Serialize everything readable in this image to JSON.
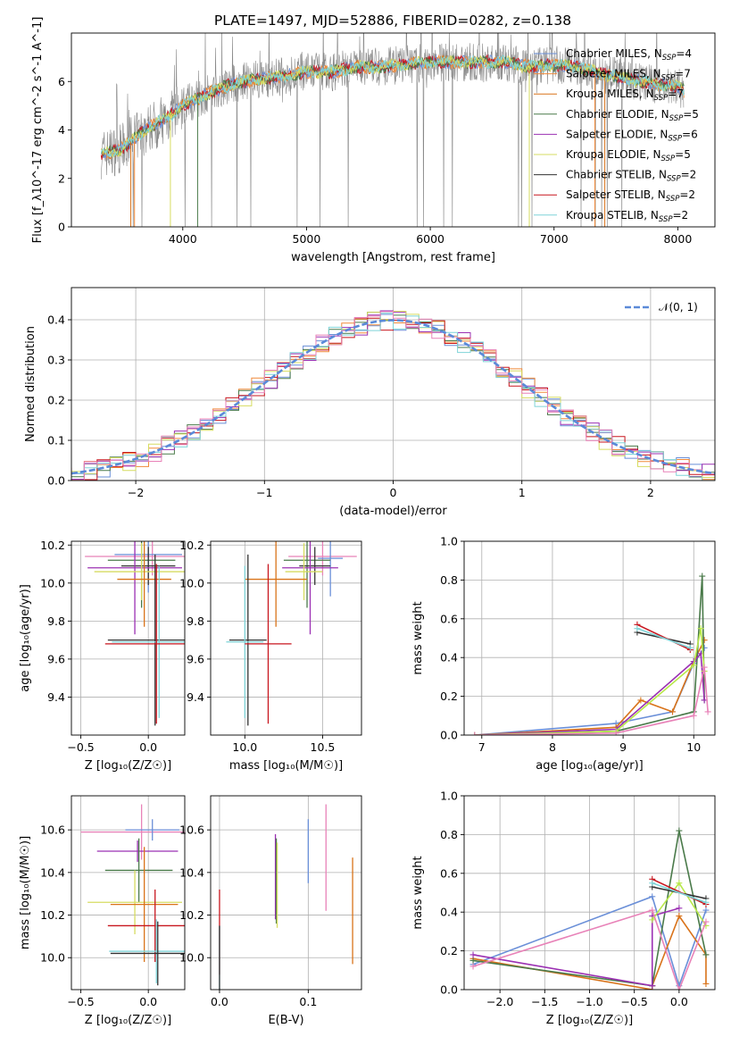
{
  "figure": {
    "title": "PLATE=1497, MJD=52886, FIBERID=0282, z=0.138"
  },
  "colors": {
    "Chabrier MILES": "#6a8fd8",
    "Salpeter MILES": "#f08a3a",
    "Kroupa MILES": "#d9731a",
    "Chabrier ELODIE": "#4a7a4a",
    "Salpeter ELODIE": "#9b30b3",
    "Kroupa ELODIE": "#d6dc60",
    "Chabrier STELIB": "#333333",
    "Salpeter STELIB": "#c8161f",
    "Kroupa STELIB": "#7fd4d8",
    "pink": "#e882b8",
    "lime": "#b8e84a",
    "gray": "#888888",
    "normal": "#5b8ad8"
  },
  "chart_data": [
    {
      "id": "spectrum",
      "type": "line",
      "xlabel": "wavelength [Angstrom, rest frame]",
      "ylabel": "Flux [f_λ10^-17 erg cm^-2 s^-1 A^-1]",
      "xlim": [
        3100,
        8300
      ],
      "ylim": [
        0,
        8
      ],
      "xticks": [
        4000,
        5000,
        6000,
        7000,
        8000
      ],
      "yticks": [
        0,
        2,
        4,
        6
      ],
      "grid": false,
      "legend_position": "right",
      "legend": [
        {
          "label": "Chabrier MILES, N",
          "sub": "SSP",
          "tail": "=4",
          "color_key": "Chabrier MILES"
        },
        {
          "label": "Salpeter MILES, N",
          "sub": "SSP",
          "tail": "=7",
          "color_key": "Salpeter MILES"
        },
        {
          "label": "Kroupa MILES, N",
          "sub": "SSP",
          "tail": "=7",
          "color_key": "Kroupa MILES"
        },
        {
          "label": "Chabrier ELODIE, N",
          "sub": "SSP",
          "tail": "=5",
          "color_key": "Chabrier ELODIE"
        },
        {
          "label": "Salpeter ELODIE, N",
          "sub": "SSP",
          "tail": "=6",
          "color_key": "Salpeter ELODIE"
        },
        {
          "label": "Kroupa ELODIE, N",
          "sub": "SSP",
          "tail": "=5",
          "color_key": "Kroupa ELODIE"
        },
        {
          "label": "Chabrier STELIB, N",
          "sub": "SSP",
          "tail": "=2",
          "color_key": "Chabrier STELIB"
        },
        {
          "label": "Salpeter STELIB, N",
          "sub": "SSP",
          "tail": "=2",
          "color_key": "Salpeter STELIB"
        },
        {
          "label": "Kroupa STELIB, N",
          "sub": "SSP",
          "tail": "=2",
          "color_key": "Kroupa STELIB"
        }
      ],
      "continuum": {
        "x": [
          3340,
          3500,
          3600,
          3700,
          3800,
          3900,
          4000,
          4200,
          4400,
          4600,
          4800,
          5000,
          5200,
          5400,
          5600,
          5800,
          6000,
          6200,
          6400,
          6600,
          6800,
          7000,
          7200,
          7400,
          7600,
          7800,
          8000,
          8050
        ],
        "y": [
          3.0,
          3.2,
          3.6,
          4.0,
          4.3,
          4.6,
          5.0,
          5.5,
          5.9,
          6.1,
          6.2,
          6.4,
          6.4,
          6.6,
          6.6,
          6.7,
          6.8,
          6.8,
          6.8,
          6.8,
          6.6,
          6.7,
          6.6,
          6.3,
          6.1,
          5.9,
          5.8,
          5.6
        ]
      }
    },
    {
      "id": "residuals",
      "type": "line",
      "xlabel": "(data-model)/error",
      "ylabel": "Normed distribution",
      "xlim": [
        -2.5,
        2.5
      ],
      "ylim": [
        0,
        0.48
      ],
      "xticks": [
        -2,
        -1,
        0,
        1,
        2
      ],
      "yticks": [
        0.0,
        0.1,
        0.2,
        0.3,
        0.4
      ],
      "grid": true,
      "legend_position": "top-right",
      "legend": [
        {
          "label": "𝒩(0, 1)",
          "color_key": "normal",
          "dashed": true
        }
      ]
    },
    {
      "id": "age-vs-Z",
      "type": "scatter",
      "xlabel": "Z [log₁₀(Z/Z☉)]",
      "ylabel": "age  [log₁₀(age/yr)]",
      "xlim": [
        -0.57,
        0.27
      ],
      "ylim": [
        9.2,
        10.22
      ],
      "xticks": [
        -0.5,
        0.0
      ],
      "yticks": [
        9.4,
        9.6,
        9.8,
        10.0,
        10.2
      ],
      "grid": true,
      "errorbars": [
        {
          "x": 0.03,
          "y": 10.14,
          "xerr": 0.5,
          "yerr": 0.1,
          "color_key": "pink"
        },
        {
          "x": 0.0,
          "y": 10.15,
          "xerr": 0.25,
          "yerr": 0.2,
          "color_key": "Chabrier MILES"
        },
        {
          "x": -0.05,
          "y": 10.12,
          "xerr": 0.25,
          "yerr": 0.25,
          "color_key": "Chabrier ELODIE"
        },
        {
          "x": 0.0,
          "y": 10.09,
          "xerr": 0.2,
          "yerr": 0.1,
          "color_key": "Chabrier STELIB"
        },
        {
          "x": -0.1,
          "y": 10.08,
          "xerr": 0.35,
          "yerr": 0.35,
          "color_key": "Salpeter ELODIE"
        },
        {
          "x": -0.05,
          "y": 10.06,
          "xerr": 0.35,
          "yerr": 0.15,
          "color_key": "Kroupa ELODIE"
        },
        {
          "x": -0.03,
          "y": 10.02,
          "xerr": 0.2,
          "yerr": 0.25,
          "color_key": "Kroupa MILES"
        },
        {
          "x": 0.05,
          "y": 9.7,
          "xerr": 0.35,
          "yerr": 0.45,
          "color_key": "Chabrier STELIB"
        },
        {
          "x": 0.08,
          "y": 9.69,
          "xerr": 0.35,
          "yerr": 0.4,
          "color_key": "Kroupa STELIB"
        },
        {
          "x": 0.06,
          "y": 9.68,
          "xerr": 0.38,
          "yerr": 0.42,
          "color_key": "Salpeter STELIB"
        }
      ]
    },
    {
      "id": "age-vs-mass",
      "type": "scatter",
      "xlabel": "mass [log₁₀(M/M☉)]",
      "ylabel": "",
      "xlim": [
        9.78,
        10.75
      ],
      "ylim": [
        9.2,
        10.22
      ],
      "xticks": [
        10.0,
        10.5
      ],
      "yticks": [
        9.4,
        9.6,
        9.8,
        10.0,
        10.2
      ],
      "grid": true,
      "errorbars": [
        {
          "x": 10.5,
          "y": 10.14,
          "xerr": 0.22,
          "yerr": 0.1,
          "color_key": "pink"
        },
        {
          "x": 10.55,
          "y": 10.13,
          "xerr": 0.08,
          "yerr": 0.2,
          "color_key": "Chabrier MILES"
        },
        {
          "x": 10.4,
          "y": 10.12,
          "xerr": 0.15,
          "yerr": 0.25,
          "color_key": "Chabrier ELODIE"
        },
        {
          "x": 10.45,
          "y": 10.09,
          "xerr": 0.1,
          "yerr": 0.1,
          "color_key": "Chabrier STELIB"
        },
        {
          "x": 10.42,
          "y": 10.08,
          "xerr": 0.18,
          "yerr": 0.35,
          "color_key": "Salpeter ELODIE"
        },
        {
          "x": 10.38,
          "y": 10.06,
          "xerr": 0.12,
          "yerr": 0.15,
          "color_key": "Kroupa ELODIE"
        },
        {
          "x": 10.2,
          "y": 10.02,
          "xerr": 0.2,
          "yerr": 0.25,
          "color_key": "Kroupa MILES"
        },
        {
          "x": 10.02,
          "y": 9.7,
          "xerr": 0.12,
          "yerr": 0.45,
          "color_key": "Chabrier STELIB"
        },
        {
          "x": 10.0,
          "y": 9.69,
          "xerr": 0.12,
          "yerr": 0.4,
          "color_key": "Kroupa STELIB"
        },
        {
          "x": 10.15,
          "y": 9.68,
          "xerr": 0.15,
          "yerr": 0.42,
          "color_key": "Salpeter STELIB"
        }
      ]
    },
    {
      "id": "massweight-vs-age",
      "type": "line",
      "xlabel": "age  [log₁₀(age/yr)]",
      "ylabel": "mass weight",
      "xlim": [
        6.75,
        10.3
      ],
      "ylim": [
        0,
        1
      ],
      "xticks": [
        7,
        8,
        9,
        10
      ],
      "yticks": [
        0.0,
        0.2,
        0.4,
        0.6,
        0.8,
        1.0
      ],
      "grid": true,
      "series": [
        {
          "color_key": "Chabrier MILES",
          "x": [
            6.9,
            8.9,
            9.7,
            10.0,
            10.15
          ],
          "y": [
            0.0,
            0.06,
            0.12,
            0.37,
            0.45
          ]
        },
        {
          "color_key": "Kroupa MILES",
          "x": [
            6.9,
            8.9,
            9.25,
            9.7,
            10.0,
            10.15
          ],
          "y": [
            0.0,
            0.04,
            0.18,
            0.12,
            0.38,
            0.49
          ]
        },
        {
          "color_key": "Chabrier ELODIE",
          "x": [
            6.9,
            8.9,
            10.0,
            10.12,
            10.15
          ],
          "y": [
            0.0,
            0.02,
            0.12,
            0.82,
            0.18
          ]
        },
        {
          "color_key": "Salpeter ELODIE",
          "x": [
            6.9,
            8.9,
            10.0,
            10.1,
            10.15
          ],
          "y": [
            0.0,
            0.03,
            0.38,
            0.42,
            0.18
          ]
        },
        {
          "color_key": "lime",
          "x": [
            6.9,
            8.9,
            10.0,
            10.1,
            10.15
          ],
          "y": [
            0.0,
            0.02,
            0.36,
            0.55,
            0.33
          ]
        },
        {
          "color_key": "pink",
          "x": [
            6.9,
            8.9,
            10.0,
            10.15,
            10.2
          ],
          "y": [
            0.0,
            0.01,
            0.1,
            0.35,
            0.12
          ]
        },
        {
          "color_key": "Chabrier STELIB",
          "x": [
            9.2,
            9.95
          ],
          "y": [
            0.53,
            0.47
          ]
        },
        {
          "color_key": "Salpeter STELIB",
          "x": [
            9.2,
            9.95
          ],
          "y": [
            0.57,
            0.44
          ]
        },
        {
          "color_key": "Kroupa STELIB",
          "x": [
            9.2,
            9.95
          ],
          "y": [
            0.55,
            0.45
          ]
        }
      ]
    },
    {
      "id": "mass-vs-Z",
      "type": "scatter",
      "xlabel": "Z [log₁₀(Z/Z☉)]",
      "ylabel": "mass [log₁₀(M/M☉)]",
      "xlim": [
        -0.57,
        0.27
      ],
      "ylim": [
        9.85,
        10.76
      ],
      "xticks": [
        -0.5,
        0.0
      ],
      "yticks": [
        10.0,
        10.2,
        10.4,
        10.6
      ],
      "grid": true,
      "errorbars": [
        {
          "x": -0.05,
          "y": 10.59,
          "xerr": 0.45,
          "yerr": 0.13,
          "color_key": "pink"
        },
        {
          "x": 0.03,
          "y": 10.6,
          "xerr": 0.2,
          "yerr": 0.05,
          "color_key": "Chabrier MILES"
        },
        {
          "x": -0.08,
          "y": 10.5,
          "xerr": 0.3,
          "yerr": 0.05,
          "color_key": "Salpeter ELODIE"
        },
        {
          "x": -0.07,
          "y": 10.41,
          "xerr": 0.25,
          "yerr": 0.15,
          "color_key": "Chabrier ELODIE"
        },
        {
          "x": -0.1,
          "y": 10.26,
          "xerr": 0.35,
          "yerr": 0.15,
          "color_key": "Kroupa ELODIE"
        },
        {
          "x": -0.03,
          "y": 10.25,
          "xerr": 0.25,
          "yerr": 0.27,
          "color_key": "Kroupa MILES"
        },
        {
          "x": 0.05,
          "y": 10.15,
          "xerr": 0.35,
          "yerr": 0.17,
          "color_key": "Salpeter STELIB"
        },
        {
          "x": 0.06,
          "y": 10.03,
          "xerr": 0.35,
          "yerr": 0.15,
          "color_key": "Kroupa STELIB"
        },
        {
          "x": 0.07,
          "y": 10.02,
          "xerr": 0.35,
          "yerr": 0.15,
          "color_key": "Chabrier STELIB"
        }
      ]
    },
    {
      "id": "mass-vs-EBV",
      "type": "scatter",
      "xlabel": "E(B-V)",
      "ylabel": "",
      "xlim": [
        -0.01,
        0.16
      ],
      "ylim": [
        9.85,
        10.76
      ],
      "xticks": [
        0.0,
        0.1
      ],
      "yticks": [
        10.0,
        10.2,
        10.4,
        10.6
      ],
      "grid": true,
      "errorbars": [
        {
          "x": 0.0,
          "y": 10.12,
          "xerr": 0,
          "yerr": 0.2,
          "color_key": "Salpeter STELIB"
        },
        {
          "x": 0.0,
          "y": 10.0,
          "xerr": 0,
          "yerr": 0.15,
          "color_key": "Kroupa STELIB"
        },
        {
          "x": 0.0,
          "y": 10.0,
          "xerr": 0,
          "yerr": 0.15,
          "color_key": "Chabrier STELIB"
        },
        {
          "x": 0.063,
          "y": 10.38,
          "xerr": 0,
          "yerr": 0.2,
          "color_key": "Salpeter ELODIE"
        },
        {
          "x": 0.064,
          "y": 10.36,
          "xerr": 0,
          "yerr": 0.2,
          "color_key": "Chabrier ELODIE"
        },
        {
          "x": 0.065,
          "y": 10.34,
          "xerr": 0,
          "yerr": 0.2,
          "color_key": "Kroupa ELODIE"
        },
        {
          "x": 0.1,
          "y": 10.5,
          "xerr": 0,
          "yerr": 0.15,
          "color_key": "Chabrier MILES"
        },
        {
          "x": 0.12,
          "y": 10.47,
          "xerr": 0,
          "yerr": 0.25,
          "color_key": "pink"
        },
        {
          "x": 0.15,
          "y": 10.22,
          "xerr": 0,
          "yerr": 0.25,
          "color_key": "Kroupa MILES"
        }
      ]
    },
    {
      "id": "massweight-vs-Z",
      "type": "line",
      "xlabel": "Z [log₁₀(Z/Z☉)]",
      "ylabel": "mass weight",
      "xlim": [
        -2.4,
        0.4
      ],
      "ylim": [
        0,
        1
      ],
      "xticks": [
        -2.0,
        -1.5,
        -1.0,
        -0.5,
        0.0
      ],
      "yticks": [
        0.0,
        0.2,
        0.4,
        0.6,
        0.8,
        1.0
      ],
      "grid": true,
      "series": [
        {
          "color_key": "Chabrier MILES",
          "x": [
            -2.3,
            -0.3,
            0.0,
            0.3
          ],
          "y": [
            0.13,
            0.48,
            0.02,
            0.41
          ]
        },
        {
          "color_key": "Kroupa MILES",
          "x": [
            -2.3,
            -0.3,
            -0.3,
            0.0,
            0.3,
            0.3
          ],
          "y": [
            0.16,
            0.0,
            0.02,
            0.38,
            0.18,
            0.03
          ]
        },
        {
          "color_key": "Chabrier ELODIE",
          "x": [
            -2.3,
            -0.3,
            0.0,
            0.3
          ],
          "y": [
            0.15,
            0.02,
            0.82,
            0.18
          ]
        },
        {
          "color_key": "Salpeter ELODIE",
          "x": [
            -2.3,
            -0.3,
            -0.3,
            0.0
          ],
          "y": [
            0.18,
            0.02,
            0.38,
            0.42
          ]
        },
        {
          "color_key": "lime",
          "x": [
            -0.3,
            0.0,
            0.3
          ],
          "y": [
            0.36,
            0.55,
            0.33
          ]
        },
        {
          "color_key": "pink",
          "x": [
            -2.3,
            -0.3,
            0.0,
            0.3
          ],
          "y": [
            0.12,
            0.41,
            0.0,
            0.35
          ]
        },
        {
          "color_key": "Chabrier STELIB",
          "x": [
            -0.3,
            0.3
          ],
          "y": [
            0.53,
            0.47
          ]
        },
        {
          "color_key": "Salpeter STELIB",
          "x": [
            -0.3,
            0.3
          ],
          "y": [
            0.57,
            0.44
          ]
        },
        {
          "color_key": "Kroupa STELIB",
          "x": [
            -0.3,
            0.3
          ],
          "y": [
            0.55,
            0.45
          ]
        }
      ]
    }
  ]
}
